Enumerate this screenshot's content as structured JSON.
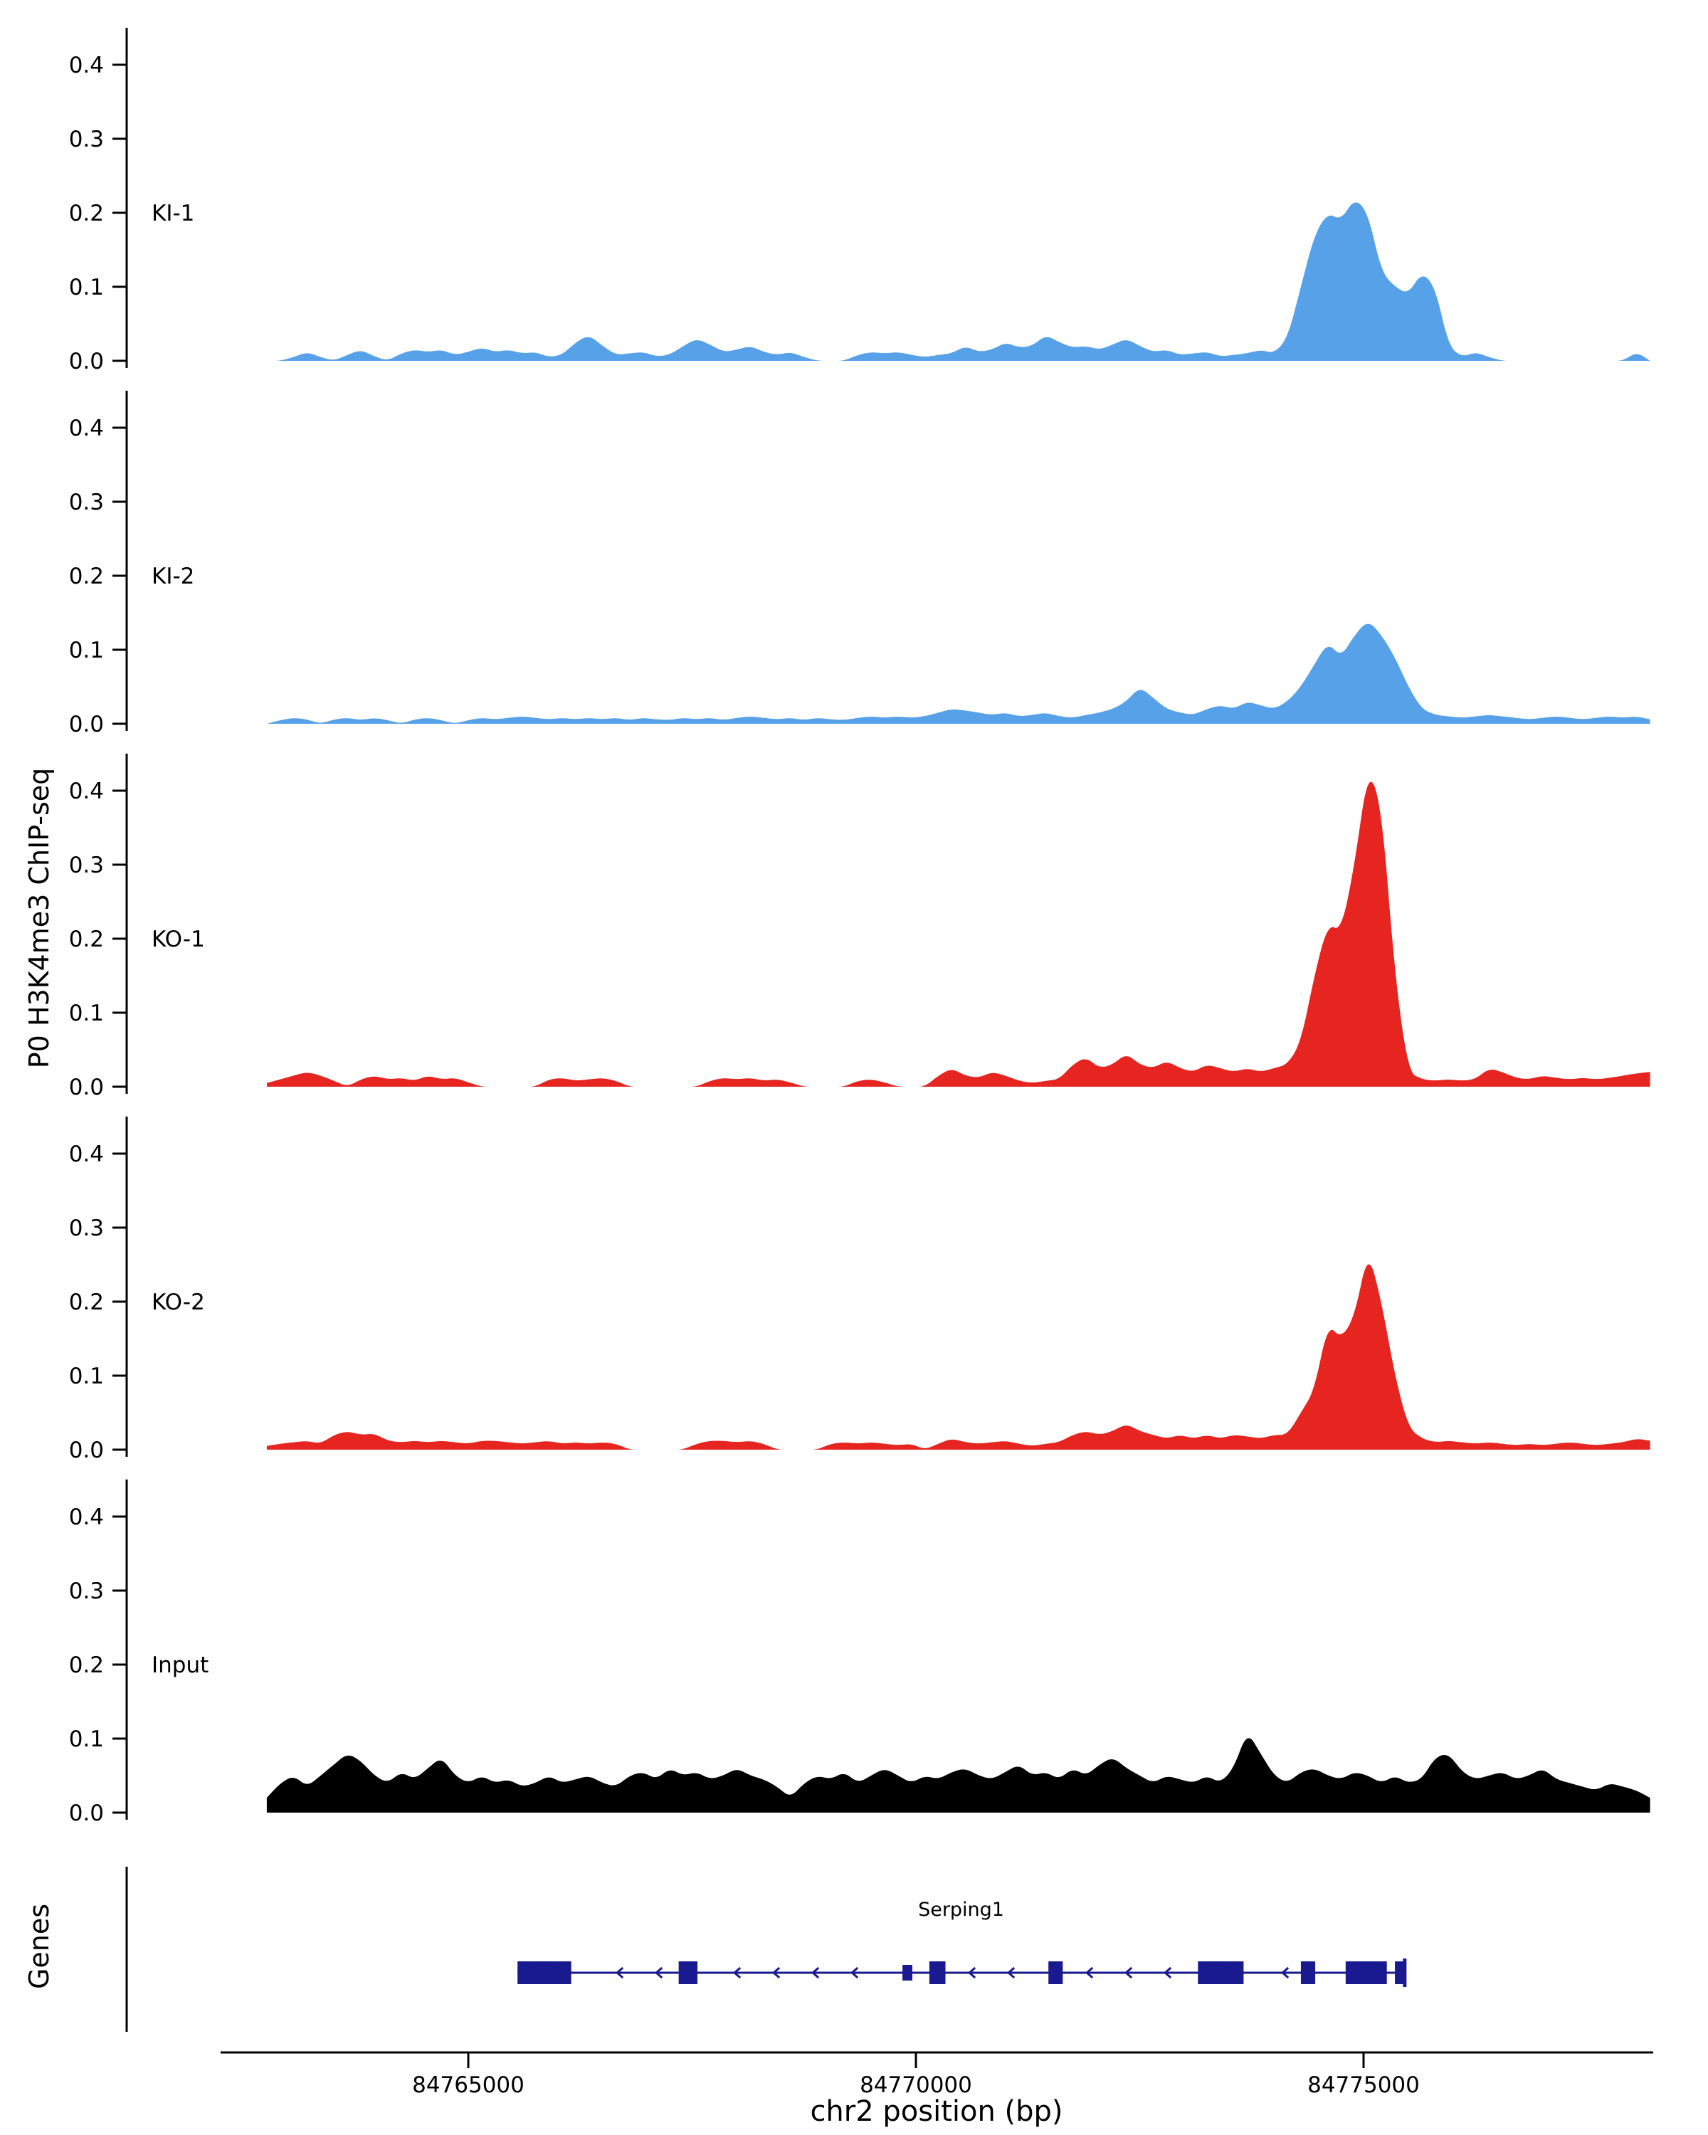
{
  "figure": {
    "genes_label": "Genes",
    "colors": {
      "ki": "#57A1E8",
      "ko": "#E62420",
      "input": "#000000",
      "gene": "#1A1A90",
      "axis": "#000000"
    }
  },
  "chart_data": {
    "type": "area",
    "title": "",
    "ylabel": "P0 H3K4me3 ChIP-seq",
    "xlabel": "chr2 position (bp)",
    "x_start": 84762750,
    "x_step": 150,
    "x_end": 84778200,
    "x_ticks": [
      84765000,
      84770000,
      84775000
    ],
    "y_ticks": [
      0,
      0.1,
      0.2,
      0.3,
      0.4
    ],
    "ylim": [
      0,
      0.45
    ],
    "grid": false,
    "legend": "track labels inside plot",
    "tracks": [
      {
        "label": "KI-1",
        "color_key": "ki",
        "values": [
          0,
          0,
          0.005,
          0.012,
          0.005,
          0,
          0.008,
          0.015,
          0.006,
          0,
          0.01,
          0.015,
          0.012,
          0.015,
          0.008,
          0.012,
          0.018,
          0.012,
          0.015,
          0.01,
          0.012,
          0.005,
          0.008,
          0.025,
          0.035,
          0.02,
          0.008,
          0.01,
          0.012,
          0.006,
          0.008,
          0.02,
          0.03,
          0.022,
          0.012,
          0.015,
          0.02,
          0.012,
          0.008,
          0.012,
          0.005,
          0,
          0,
          0,
          0.008,
          0.012,
          0.01,
          0.012,
          0.008,
          0.005,
          0.008,
          0.01,
          0.02,
          0.012,
          0.015,
          0.025,
          0.018,
          0.02,
          0.035,
          0.025,
          0.018,
          0.02,
          0.015,
          0.022,
          0.03,
          0.02,
          0.012,
          0.015,
          0.008,
          0.01,
          0.012,
          0.006,
          0.008,
          0.01,
          0.015,
          0.01,
          0.03,
          0.1,
          0.17,
          0.2,
          0.19,
          0.22,
          0.2,
          0.12,
          0.1,
          0.09,
          0.12,
          0.1,
          0.02,
          0.005,
          0.012,
          0.005,
          0,
          0,
          0,
          0,
          0,
          0,
          0,
          0,
          0,
          0,
          0.012,
          0
        ]
      },
      {
        "label": "KI-2",
        "color_key": "ki",
        "values": [
          0,
          0.005,
          0.008,
          0.006,
          0,
          0.006,
          0.008,
          0.005,
          0.008,
          0.005,
          0,
          0.006,
          0.008,
          0.005,
          0,
          0.005,
          0.008,
          0.006,
          0.008,
          0.01,
          0.008,
          0.006,
          0.008,
          0.006,
          0.008,
          0.006,
          0.008,
          0.005,
          0.008,
          0.006,
          0.005,
          0.008,
          0.006,
          0.008,
          0.005,
          0.008,
          0.01,
          0.008,
          0.006,
          0.008,
          0.005,
          0.008,
          0.006,
          0.005,
          0.008,
          0.01,
          0.008,
          0.01,
          0.008,
          0.01,
          0.015,
          0.02,
          0.018,
          0.015,
          0.012,
          0.015,
          0.01,
          0.012,
          0.015,
          0.01,
          0.008,
          0.012,
          0.015,
          0.02,
          0.03,
          0.05,
          0.035,
          0.02,
          0.015,
          0.012,
          0.02,
          0.025,
          0.02,
          0.03,
          0.025,
          0.02,
          0.03,
          0.05,
          0.08,
          0.11,
          0.09,
          0.12,
          0.14,
          0.12,
          0.09,
          0.05,
          0.02,
          0.012,
          0.01,
          0.008,
          0.01,
          0.012,
          0.01,
          0.008,
          0.006,
          0.008,
          0.01,
          0.008,
          0.006,
          0.008,
          0.01,
          0.008,
          0.01,
          0.006
        ]
      },
      {
        "label": "KO-1",
        "color_key": "ko",
        "values": [
          0.005,
          0.01,
          0.015,
          0.02,
          0.015,
          0.008,
          0,
          0.01,
          0.015,
          0.01,
          0.012,
          0.008,
          0.015,
          0.01,
          0.012,
          0.006,
          0,
          0,
          0,
          0,
          0,
          0.01,
          0.012,
          0.008,
          0.01,
          0.012,
          0.008,
          0,
          0,
          0,
          0,
          0,
          0,
          0.008,
          0.012,
          0.01,
          0.012,
          0.008,
          0.01,
          0.006,
          0,
          0,
          0,
          0,
          0.008,
          0.01,
          0.006,
          0,
          0,
          0,
          0.015,
          0.025,
          0.015,
          0.012,
          0.02,
          0.015,
          0.008,
          0.005,
          0.008,
          0.01,
          0.03,
          0.04,
          0.025,
          0.03,
          0.045,
          0.03,
          0.025,
          0.035,
          0.025,
          0.02,
          0.03,
          0.025,
          0.02,
          0.025,
          0.02,
          0.025,
          0.03,
          0.06,
          0.15,
          0.22,
          0.21,
          0.3,
          0.43,
          0.38,
          0.15,
          0.02,
          0.01,
          0.008,
          0.01,
          0.008,
          0.01,
          0.025,
          0.02,
          0.012,
          0.01,
          0.015,
          0.012,
          0.01,
          0.012,
          0.01,
          0.012,
          0.015,
          0.018,
          0.02
        ]
      },
      {
        "label": "KO-2",
        "color_key": "ko",
        "values": [
          0.005,
          0.008,
          0.01,
          0.012,
          0.008,
          0.02,
          0.025,
          0.02,
          0.022,
          0.012,
          0.01,
          0.012,
          0.01,
          0.012,
          0.01,
          0.008,
          0.012,
          0.012,
          0.01,
          0.008,
          0.01,
          0.012,
          0.008,
          0.01,
          0.008,
          0.01,
          0.008,
          0,
          0,
          0,
          0,
          0,
          0.008,
          0.012,
          0.012,
          0.01,
          0.012,
          0.008,
          0,
          0,
          0,
          0,
          0.008,
          0.01,
          0.008,
          0.01,
          0.008,
          0.006,
          0.008,
          0,
          0.008,
          0.015,
          0.01,
          0.008,
          0.01,
          0.012,
          0.008,
          0.005,
          0.008,
          0.01,
          0.02,
          0.025,
          0.02,
          0.025,
          0.035,
          0.025,
          0.02,
          0.015,
          0.02,
          0.015,
          0.02,
          0.015,
          0.02,
          0.018,
          0.015,
          0.02,
          0.02,
          0.05,
          0.08,
          0.17,
          0.15,
          0.18,
          0.27,
          0.2,
          0.1,
          0.03,
          0.015,
          0.01,
          0.012,
          0.01,
          0.008,
          0.01,
          0.008,
          0.006,
          0.008,
          0.006,
          0.008,
          0.01,
          0.008,
          0.006,
          0.008,
          0.01,
          0.015,
          0.012
        ]
      },
      {
        "label": "Input",
        "color_key": "input",
        "values": [
          0.02,
          0.04,
          0.05,
          0.035,
          0.05,
          0.065,
          0.08,
          0.07,
          0.05,
          0.04,
          0.055,
          0.045,
          0.06,
          0.075,
          0.05,
          0.04,
          0.05,
          0.04,
          0.045,
          0.035,
          0.04,
          0.05,
          0.04,
          0.045,
          0.05,
          0.04,
          0.035,
          0.05,
          0.055,
          0.045,
          0.06,
          0.05,
          0.055,
          0.045,
          0.05,
          0.06,
          0.05,
          0.045,
          0.035,
          0.02,
          0.04,
          0.05,
          0.045,
          0.055,
          0.04,
          0.05,
          0.06,
          0.05,
          0.04,
          0.05,
          0.045,
          0.055,
          0.06,
          0.05,
          0.045,
          0.055,
          0.065,
          0.05,
          0.055,
          0.045,
          0.06,
          0.05,
          0.065,
          0.075,
          0.06,
          0.05,
          0.04,
          0.05,
          0.045,
          0.04,
          0.05,
          0.04,
          0.06,
          0.11,
          0.08,
          0.05,
          0.04,
          0.055,
          0.06,
          0.05,
          0.045,
          0.055,
          0.05,
          0.04,
          0.05,
          0.04,
          0.045,
          0.075,
          0.08,
          0.055,
          0.045,
          0.05,
          0.055,
          0.045,
          0.05,
          0.06,
          0.045,
          0.04,
          0.035,
          0.03,
          0.04,
          0.035,
          0.03,
          0.02
        ]
      }
    ],
    "genes": {
      "name": "Serping1",
      "strand": "-",
      "start": 84765550,
      "end": 84775460,
      "exons": [
        {
          "start": 84765550,
          "end": 84766150,
          "thick": true
        },
        {
          "start": 84767350,
          "end": 84767560,
          "thick": true
        },
        {
          "start": 84769850,
          "end": 84769960,
          "thick": false
        },
        {
          "start": 84770150,
          "end": 84770330,
          "thick": true
        },
        {
          "start": 84771480,
          "end": 84771640,
          "thick": true
        },
        {
          "start": 84773150,
          "end": 84773660,
          "thick": true
        },
        {
          "start": 84774300,
          "end": 84774460,
          "thick": true
        },
        {
          "start": 84774800,
          "end": 84775260,
          "thick": true
        },
        {
          "start": 84775350,
          "end": 84775460,
          "thick": true
        }
      ]
    }
  }
}
